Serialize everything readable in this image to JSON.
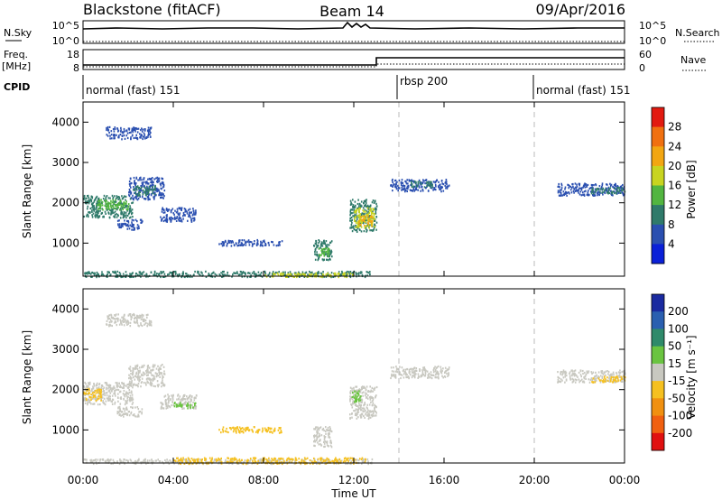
{
  "header": {
    "station": "Blackstone (fitACF)",
    "beam": "Beam 14",
    "date": "09/Apr/2016"
  },
  "strips": {
    "nsky_label": "N.Sky",
    "nsky_ticks": [
      "10^5",
      "10^0"
    ],
    "nsearch_label": "N.Search",
    "nsearch_ticks": [
      "10^5",
      "10^0"
    ],
    "freq_label": "Freq.",
    "freq_unit": "[MHz]",
    "freq_ticks": [
      "18",
      "8"
    ],
    "nave_label": "Nave",
    "nave_ticks": [
      "60",
      "0"
    ],
    "cpid_label": "CPID",
    "cpid_segments": [
      {
        "label": "normal (fast) 151",
        "start_h": 0,
        "end_h": 14
      },
      {
        "label": "rbsp 200",
        "start_h": 14,
        "end_h": 20
      },
      {
        "label": "normal (fast) 151",
        "start_h": 20,
        "end_h": 24
      }
    ]
  },
  "chart_data": [
    {
      "type": "heatmap",
      "name": "power",
      "ylabel": "Slant Range [km]",
      "xlabel": "Time UT",
      "xlim_hours": [
        0,
        24
      ],
      "ylim_km": [
        180,
        4500
      ],
      "yticks": [
        "1000",
        "2000",
        "3000",
        "4000"
      ],
      "xticks": [
        "00:00",
        "04:00",
        "08:00",
        "12:00",
        "16:00",
        "20:00",
        "00:00"
      ],
      "colorbar": {
        "label": "Power [dB]",
        "ticks": [
          "4",
          "8",
          "12",
          "16",
          "20",
          "24",
          "28"
        ],
        "colors": [
          "#0a20d8",
          "#2a4fb0",
          "#2f7a6a",
          "#52b540",
          "#c8d420",
          "#f2a612",
          "#f07010",
          "#e21a10"
        ]
      },
      "regions": [
        {
          "t0": 0.0,
          "t1": 2.2,
          "r0": 1650,
          "r1": 2200,
          "color": "#2f7a6a"
        },
        {
          "t0": 0.6,
          "t1": 2.0,
          "r0": 1850,
          "r1": 2100,
          "color": "#52b540"
        },
        {
          "t0": 2.0,
          "t1": 3.6,
          "r0": 2100,
          "r1": 2650,
          "color": "#2a4fb0"
        },
        {
          "t0": 2.2,
          "t1": 3.2,
          "r0": 2200,
          "r1": 2450,
          "color": "#2f7a6a"
        },
        {
          "t0": 1.5,
          "t1": 2.6,
          "r0": 1350,
          "r1": 1600,
          "color": "#2a4fb0"
        },
        {
          "t0": 3.4,
          "t1": 5.0,
          "r0": 1550,
          "r1": 1900,
          "color": "#2a4fb0"
        },
        {
          "t0": 6.0,
          "t1": 8.8,
          "r0": 950,
          "r1": 1100,
          "color": "#2a4fb0"
        },
        {
          "t0": 10.2,
          "t1": 11.0,
          "r0": 600,
          "r1": 1100,
          "color": "#2f7a6a"
        },
        {
          "t0": 10.4,
          "t1": 10.9,
          "r0": 700,
          "r1": 900,
          "color": "#52b540"
        },
        {
          "t0": 11.8,
          "t1": 13.0,
          "r0": 1300,
          "r1": 2100,
          "color": "#2f7a6a"
        },
        {
          "t0": 12.0,
          "t1": 12.9,
          "r0": 1400,
          "r1": 1900,
          "color": "#c8d420"
        },
        {
          "t0": 12.2,
          "t1": 12.8,
          "r0": 1450,
          "r1": 1700,
          "color": "#f2a612"
        },
        {
          "t0": 13.6,
          "t1": 16.2,
          "r0": 2300,
          "r1": 2600,
          "color": "#2a4fb0"
        },
        {
          "t0": 14.5,
          "t1": 15.5,
          "r0": 2400,
          "r1": 2550,
          "color": "#2f7a6a"
        },
        {
          "t0": 21.0,
          "t1": 24.0,
          "r0": 2200,
          "r1": 2500,
          "color": "#2a4fb0"
        },
        {
          "t0": 22.5,
          "t1": 24.0,
          "r0": 2250,
          "r1": 2400,
          "color": "#2f7a6a"
        },
        {
          "t0": 1.0,
          "t1": 3.0,
          "r0": 3600,
          "r1": 3900,
          "color": "#2a4fb0"
        },
        {
          "t0": 0.0,
          "t1": 12.8,
          "r0": 180,
          "r1": 320,
          "color": "#2f7a6a"
        },
        {
          "t0": 8.0,
          "t1": 12.0,
          "r0": 180,
          "r1": 280,
          "color": "#c8d420"
        }
      ]
    },
    {
      "type": "heatmap",
      "name": "velocity",
      "ylabel": "Slant Range [km]",
      "xlabel": "Time UT",
      "xlim_hours": [
        0,
        24
      ],
      "ylim_km": [
        180,
        4500
      ],
      "yticks": [
        "1000",
        "2000",
        "3000",
        "4000"
      ],
      "xticks": [
        "00:00",
        "04:00",
        "08:00",
        "12:00",
        "16:00",
        "20:00",
        "00:00"
      ],
      "colorbar": {
        "label": "Velocity [m s⁻¹]",
        "ticks": [
          "200",
          "100",
          "50",
          "15",
          "-15",
          "-50",
          "-100",
          "-200"
        ],
        "colors": [
          "#1a2aa0",
          "#2a5fb0",
          "#2f8a6a",
          "#6ac440",
          "#c8c8c0",
          "#f5c020",
          "#f09010",
          "#f06010",
          "#e01010"
        ]
      },
      "regions": [
        {
          "t0": 0.0,
          "t1": 2.2,
          "r0": 1650,
          "r1": 2200,
          "color": "#c8c8c0"
        },
        {
          "t0": 0.0,
          "t1": 0.8,
          "r0": 1750,
          "r1": 2050,
          "color": "#f5c020"
        },
        {
          "t0": 2.0,
          "t1": 3.6,
          "r0": 2100,
          "r1": 2650,
          "color": "#c8c8c0"
        },
        {
          "t0": 1.5,
          "t1": 2.6,
          "r0": 1350,
          "r1": 1600,
          "color": "#c8c8c0"
        },
        {
          "t0": 3.4,
          "t1": 5.0,
          "r0": 1550,
          "r1": 1900,
          "color": "#c8c8c0"
        },
        {
          "t0": 4.0,
          "t1": 5.0,
          "r0": 1550,
          "r1": 1700,
          "color": "#6ac440"
        },
        {
          "t0": 6.0,
          "t1": 8.8,
          "r0": 950,
          "r1": 1100,
          "color": "#f5c020"
        },
        {
          "t0": 10.2,
          "t1": 11.0,
          "r0": 600,
          "r1": 1100,
          "color": "#c8c8c0"
        },
        {
          "t0": 11.8,
          "t1": 13.0,
          "r0": 1300,
          "r1": 2100,
          "color": "#c8c8c0"
        },
        {
          "t0": 11.9,
          "t1": 12.3,
          "r0": 1700,
          "r1": 2000,
          "color": "#6ac440"
        },
        {
          "t0": 13.6,
          "t1": 16.2,
          "r0": 2300,
          "r1": 2600,
          "color": "#c8c8c0"
        },
        {
          "t0": 21.0,
          "t1": 24.0,
          "r0": 2200,
          "r1": 2500,
          "color": "#c8c8c0"
        },
        {
          "t0": 22.5,
          "t1": 24.0,
          "r0": 2200,
          "r1": 2350,
          "color": "#f5c020"
        },
        {
          "t0": 1.0,
          "t1": 3.0,
          "r0": 3600,
          "r1": 3900,
          "color": "#c8c8c0"
        },
        {
          "t0": 0.0,
          "t1": 12.8,
          "r0": 180,
          "r1": 300,
          "color": "#c8c8c0"
        },
        {
          "t0": 4.0,
          "t1": 12.5,
          "r0": 180,
          "r1": 330,
          "color": "#f5c020"
        }
      ]
    }
  ]
}
